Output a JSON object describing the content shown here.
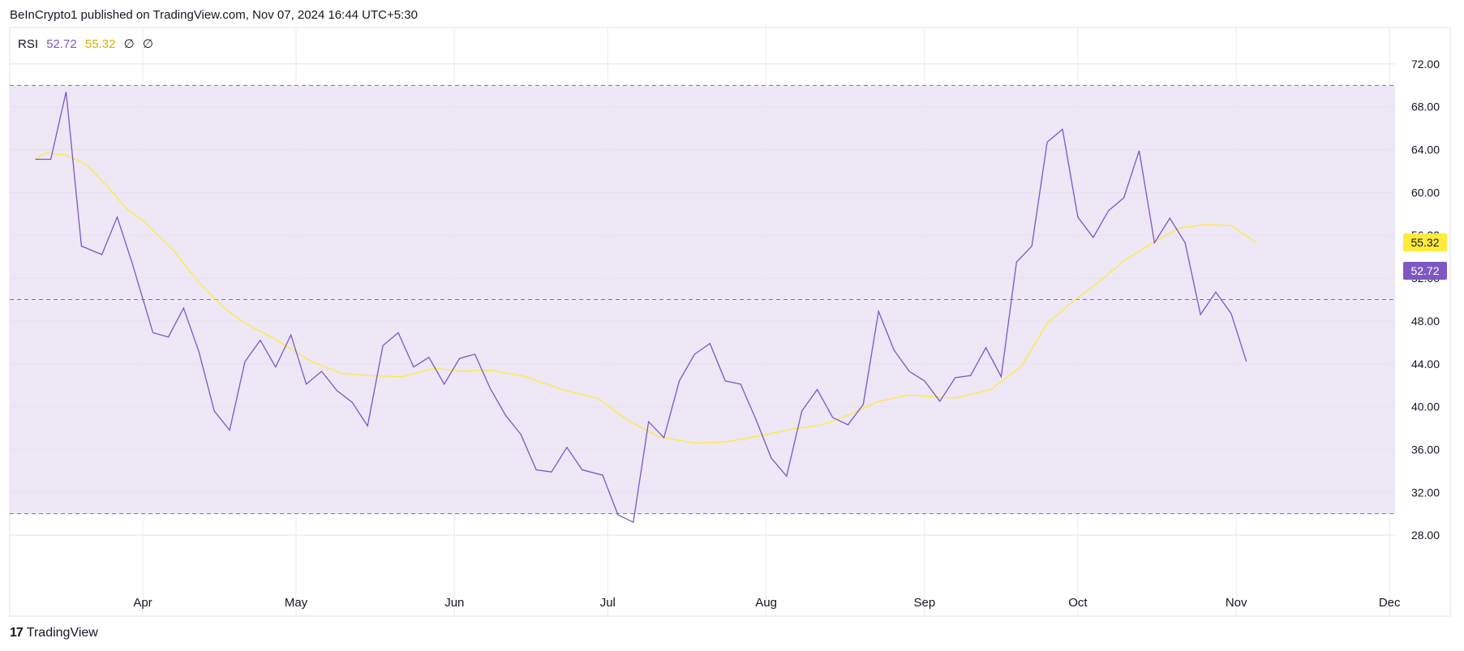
{
  "header": {
    "publisher": "BeInCrypto1 published on TradingView.com, Nov 07, 2024 16:44 UTC+5:30"
  },
  "legend": {
    "name": "RSI",
    "rsi_value": "52.72",
    "ma_value": "55.32",
    "extra1": "∅",
    "extra2": "∅"
  },
  "colors": {
    "rsi": "#7e57c2",
    "ma": "#ffeb3b",
    "band": "#ede7f6",
    "grid": "#f0f3fa",
    "dash": "#787b86",
    "axis_text": "#131722"
  },
  "tags": {
    "ma": "55.32",
    "rsi": "52.72"
  },
  "footer": {
    "logo_mark": "17",
    "brand": "TradingView"
  },
  "chart_data": {
    "type": "line",
    "ylim": [
      24.6,
      75.4
    ],
    "y_ticks": [
      "72.00",
      "68.00",
      "64.00",
      "60.00",
      "56.00",
      "52.00",
      "48.00",
      "44.00",
      "40.00",
      "36.00",
      "32.00",
      "28.00"
    ],
    "x_ticks": [
      "Apr",
      "May",
      "Jun",
      "Jul",
      "Aug",
      "Sep",
      "Oct",
      "Nov",
      "Dec"
    ],
    "band": {
      "upper": 70,
      "middle": 50,
      "lower": 30
    },
    "grid": true,
    "series": [
      {
        "name": "RSI",
        "x": [
          "2024-03-11",
          "2024-03-14",
          "2024-03-17",
          "2024-03-20",
          "2024-03-24",
          "2024-03-27",
          "2024-03-30",
          "2024-04-03",
          "2024-04-06",
          "2024-04-09",
          "2024-04-12",
          "2024-04-15",
          "2024-04-18",
          "2024-04-21",
          "2024-04-24",
          "2024-04-27",
          "2024-04-30",
          "2024-05-03",
          "2024-05-06",
          "2024-05-09",
          "2024-05-12",
          "2024-05-15",
          "2024-05-18",
          "2024-05-21",
          "2024-05-24",
          "2024-05-27",
          "2024-05-30",
          "2024-06-02",
          "2024-06-05",
          "2024-06-08",
          "2024-06-11",
          "2024-06-14",
          "2024-06-17",
          "2024-06-20",
          "2024-06-23",
          "2024-06-26",
          "2024-06-30",
          "2024-07-03",
          "2024-07-06",
          "2024-07-09",
          "2024-07-12",
          "2024-07-15",
          "2024-07-18",
          "2024-07-21",
          "2024-07-24",
          "2024-07-27",
          "2024-07-30",
          "2024-08-02",
          "2024-08-05",
          "2024-08-08",
          "2024-08-11",
          "2024-08-14",
          "2024-08-17",
          "2024-08-20",
          "2024-08-23",
          "2024-08-26",
          "2024-08-29",
          "2024-09-01",
          "2024-09-04",
          "2024-09-07",
          "2024-09-10",
          "2024-09-13",
          "2024-09-16",
          "2024-09-19",
          "2024-09-22",
          "2024-09-25",
          "2024-09-28",
          "2024-10-01",
          "2024-10-04",
          "2024-10-07",
          "2024-10-10",
          "2024-10-13",
          "2024-10-16",
          "2024-10-19",
          "2024-10-22",
          "2024-10-25",
          "2024-10-28",
          "2024-10-31",
          "2024-11-03"
        ],
        "values": [
          63.1,
          63.1,
          69.4,
          55.0,
          54.2,
          57.7,
          53.3,
          46.9,
          46.5,
          49.2,
          45.1,
          39.6,
          37.8,
          44.2,
          46.2,
          43.7,
          46.7,
          42.1,
          43.3,
          41.5,
          40.4,
          38.2,
          45.7,
          46.9,
          43.7,
          44.6,
          42.1,
          44.5,
          44.9,
          41.7,
          39.2,
          37.4,
          34.1,
          33.9,
          36.2,
          34.1,
          33.6,
          29.9,
          29.2,
          38.6,
          37.1,
          42.4,
          44.9,
          45.9,
          42.4,
          42.1,
          38.8,
          35.2,
          33.5,
          39.6,
          41.6,
          39.0,
          38.3,
          40.2,
          48.9,
          45.3,
          43.3,
          42.4,
          40.5,
          42.7,
          42.9,
          45.5,
          42.8,
          53.5,
          55.0,
          64.7,
          65.9,
          57.7,
          55.8,
          58.3,
          59.5,
          63.9,
          55.3,
          57.6,
          55.3,
          48.6,
          50.7,
          48.7,
          44.2
        ]
      },
      {
        "name": "RSI-based MA",
        "x": [
          "2024-03-11",
          "2024-03-13",
          "2024-03-17",
          "2024-03-21",
          "2024-03-25",
          "2024-03-29",
          "2024-04-01",
          "2024-04-07",
          "2024-04-12",
          "2024-04-17",
          "2024-04-21",
          "2024-04-27",
          "2024-05-04",
          "2024-05-10",
          "2024-05-15",
          "2024-05-22",
          "2024-05-28",
          "2024-06-02",
          "2024-06-08",
          "2024-06-15",
          "2024-06-22",
          "2024-06-29",
          "2024-07-05",
          "2024-07-11",
          "2024-07-18",
          "2024-07-24",
          "2024-07-31",
          "2024-08-06",
          "2024-08-12",
          "2024-08-17",
          "2024-08-23",
          "2024-08-29",
          "2024-09-03",
          "2024-09-07",
          "2024-09-14",
          "2024-09-20",
          "2024-09-25",
          "2024-09-30",
          "2024-10-05",
          "2024-10-10",
          "2024-10-16",
          "2024-10-21",
          "2024-10-26",
          "2024-10-31",
          "2024-11-05"
        ],
        "values": [
          63.1,
          63.7,
          63.5,
          62.6,
          60.6,
          58.4,
          57.4,
          54.6,
          51.6,
          49.2,
          47.8,
          46.3,
          44.2,
          43.1,
          42.9,
          42.8,
          43.6,
          43.3,
          43.4,
          42.8,
          41.6,
          40.8,
          38.7,
          37.2,
          36.6,
          36.7,
          37.3,
          37.9,
          38.3,
          39.2,
          40.5,
          41.1,
          40.9,
          40.8,
          41.6,
          43.8,
          47.8,
          49.8,
          51.6,
          53.6,
          55.4,
          56.7,
          57.0,
          56.9,
          55.3
        ]
      }
    ]
  }
}
